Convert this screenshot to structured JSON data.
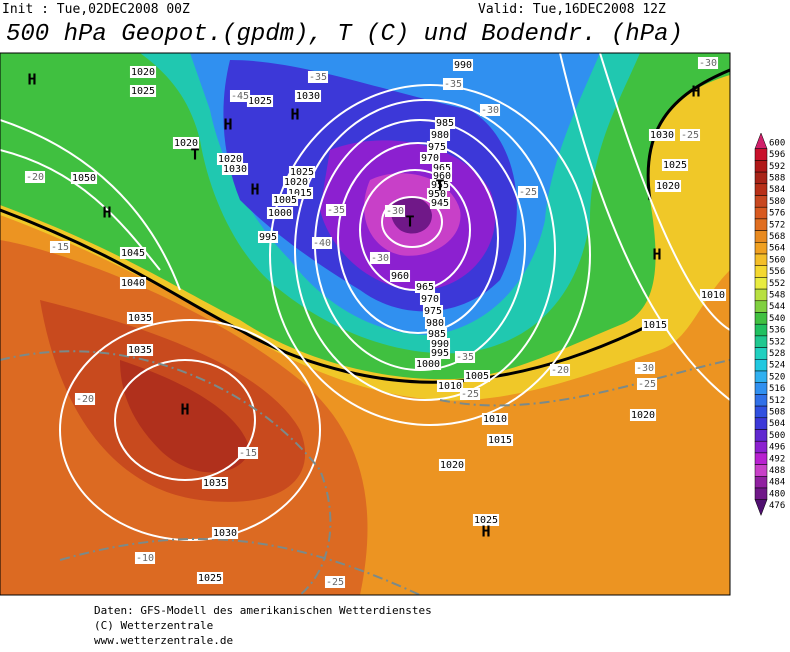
{
  "header": {
    "init": "Init : Tue,02DEC2008 00Z",
    "valid": "Valid: Tue,16DEC2008 12Z",
    "title": "500 hPa Geopot.(gpdm), T (C) und Bodendr. (hPa)"
  },
  "legend": {
    "values": [
      600,
      596,
      592,
      588,
      584,
      580,
      576,
      572,
      568,
      564,
      560,
      556,
      552,
      548,
      544,
      540,
      536,
      532,
      528,
      524,
      520,
      516,
      512,
      508,
      504,
      500,
      496,
      492,
      488,
      484,
      480,
      476
    ],
    "colors": [
      "#d0206a",
      "#c8102a",
      "#b01818",
      "#a82418",
      "#b83018",
      "#c84820",
      "#d85a20",
      "#e06e20",
      "#e88a20",
      "#f0a020",
      "#f4be28",
      "#f4d830",
      "#e8ec40",
      "#b8e040",
      "#80d040",
      "#40c040",
      "#20c060",
      "#20c890",
      "#20d0c0",
      "#20c8e0",
      "#30b0f0",
      "#3090f0",
      "#3070e8",
      "#3050e0",
      "#3c38d8",
      "#6028d0",
      "#8c20d0",
      "#b820d0",
      "#c840c8",
      "#9020a0",
      "#701888",
      "#501070"
    ]
  },
  "map": {
    "pressure_labels": [
      "1020",
      "1025",
      "1025",
      "1030",
      "1020",
      "1020",
      "1030",
      "1025",
      "1020",
      "1015",
      "1005",
      "1000",
      "995",
      "1050",
      "1045",
      "1040",
      "1035",
      "1035",
      "1035",
      "1030",
      "1025",
      "990",
      "985",
      "980",
      "975",
      "970",
      "965",
      "960",
      "955",
      "950",
      "945",
      "960",
      "965",
      "970",
      "975",
      "980",
      "985",
      "990",
      "995",
      "1000",
      "1005",
      "1010",
      "1010",
      "1015",
      "1020",
      "1025",
      "1015",
      "1020",
      "1010",
      "1030",
      "1025",
      "1020"
    ],
    "temperature_labels": [
      "-30",
      "-25",
      "-35",
      "-45",
      "-35",
      "-30",
      "-25",
      "-35",
      "-40",
      "-30",
      "-35",
      "-30",
      "-25",
      "-20",
      "-30",
      "-25",
      "-20",
      "-15",
      "-20",
      "-15",
      "-10",
      "-25"
    ],
    "centers": [
      "H",
      "H",
      "H",
      "H",
      "H",
      "T",
      "H",
      "H",
      "H",
      "H",
      "T",
      "T"
    ]
  },
  "footer": {
    "line1": "Daten: GFS-Modell des amerikanischen Wetterdienstes",
    "line2": "(C) Wetterzentrale",
    "line3": "www.wetterzentrale.de"
  }
}
